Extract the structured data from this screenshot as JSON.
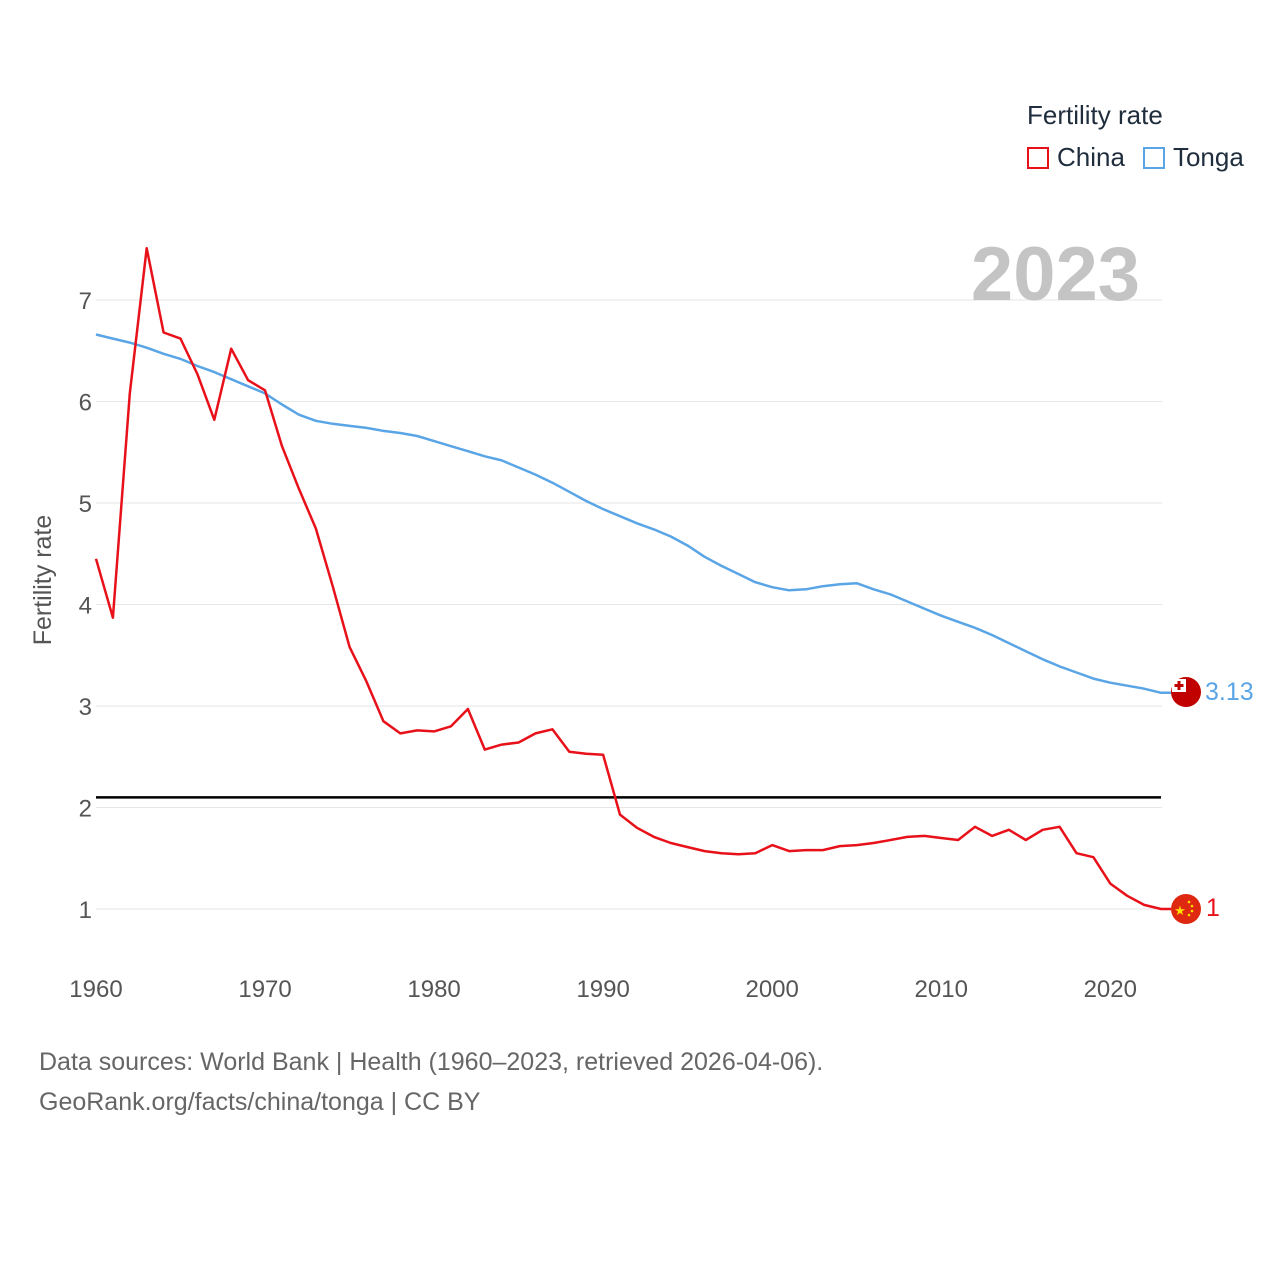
{
  "legend": {
    "title": "Fertility rate",
    "items": [
      {
        "name": "China",
        "color": "#e8111a"
      },
      {
        "name": "Tonga",
        "color": "#5aa5e6"
      }
    ]
  },
  "year_label": "2023",
  "footer": {
    "line1": "Data sources: World Bank | Health (1960–2023, retrieved 2026-04-06).",
    "line2": "GeoRank.org/facts/china/tonga | CC BY"
  },
  "end_labels": {
    "china": "1",
    "tonga": "3.13"
  },
  "icons": {
    "china": "china-flag-icon",
    "tonga": "tonga-flag-icon"
  },
  "chart_data": {
    "type": "line",
    "title": "",
    "xlabel": "",
    "ylabel": "Fertility rate",
    "xlim": [
      1960,
      2023
    ],
    "ylim": [
      0.5,
      7.5
    ],
    "xticks": [
      1960,
      1970,
      1980,
      1990,
      2000,
      2010,
      2020
    ],
    "yticks": [
      1,
      2,
      3,
      4,
      5,
      6,
      7
    ],
    "reference_line": {
      "y": 2.1,
      "color": "#000000"
    },
    "x": [
      1960,
      1961,
      1962,
      1963,
      1964,
      1965,
      1966,
      1967,
      1968,
      1969,
      1970,
      1971,
      1972,
      1973,
      1974,
      1975,
      1976,
      1977,
      1978,
      1979,
      1980,
      1981,
      1982,
      1983,
      1984,
      1985,
      1986,
      1987,
      1988,
      1989,
      1990,
      1991,
      1992,
      1993,
      1994,
      1995,
      1996,
      1997,
      1998,
      1999,
      2000,
      2001,
      2002,
      2003,
      2004,
      2005,
      2006,
      2007,
      2008,
      2009,
      2010,
      2011,
      2012,
      2013,
      2014,
      2015,
      2016,
      2017,
      2018,
      2019,
      2020,
      2021,
      2022,
      2023
    ],
    "series": [
      {
        "name": "China",
        "color": "#e8111a",
        "values": [
          4.45,
          3.87,
          6.08,
          7.51,
          6.68,
          6.62,
          6.27,
          5.82,
          6.52,
          6.21,
          6.11,
          5.56,
          5.14,
          4.75,
          4.18,
          3.58,
          3.24,
          2.85,
          2.73,
          2.76,
          2.75,
          2.8,
          2.97,
          2.57,
          2.62,
          2.64,
          2.73,
          2.77,
          2.55,
          2.53,
          2.52,
          1.93,
          1.8,
          1.71,
          1.65,
          1.61,
          1.57,
          1.55,
          1.54,
          1.55,
          1.63,
          1.57,
          1.58,
          1.58,
          1.62,
          1.63,
          1.65,
          1.68,
          1.71,
          1.72,
          1.7,
          1.68,
          1.81,
          1.72,
          1.78,
          1.68,
          1.78,
          1.81,
          1.55,
          1.51,
          1.25,
          1.13,
          1.04,
          1.0
        ]
      },
      {
        "name": "Tonga",
        "color": "#5aa5e6",
        "values": [
          6.66,
          6.62,
          6.58,
          6.53,
          6.47,
          6.42,
          6.35,
          6.29,
          6.22,
          6.15,
          6.08,
          5.97,
          5.87,
          5.81,
          5.78,
          5.76,
          5.74,
          5.71,
          5.69,
          5.66,
          5.61,
          5.56,
          5.51,
          5.46,
          5.42,
          5.35,
          5.28,
          5.2,
          5.11,
          5.02,
          4.94,
          4.87,
          4.8,
          4.74,
          4.67,
          4.58,
          4.47,
          4.38,
          4.3,
          4.22,
          4.17,
          4.14,
          4.15,
          4.18,
          4.2,
          4.21,
          4.15,
          4.1,
          4.03,
          3.96,
          3.89,
          3.83,
          3.77,
          3.7,
          3.62,
          3.54,
          3.46,
          3.39,
          3.33,
          3.27,
          3.23,
          3.2,
          3.17,
          3.13
        ]
      }
    ]
  }
}
